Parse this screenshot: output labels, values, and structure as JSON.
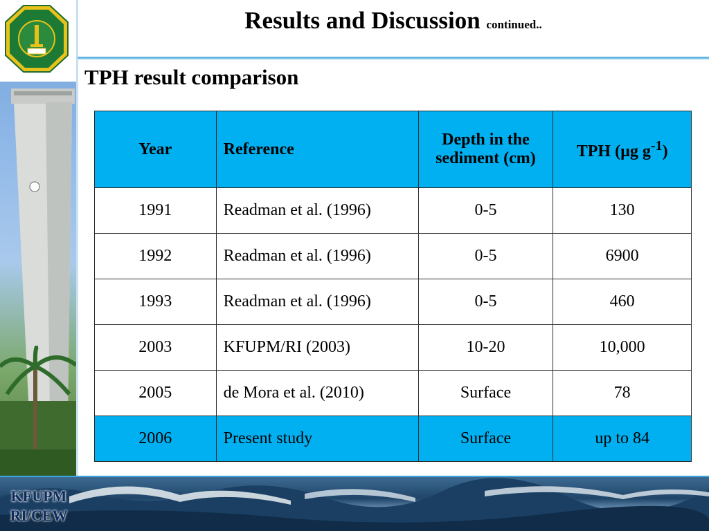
{
  "header": {
    "title": "Results and Discussion",
    "title_suffix": "continued..",
    "subtitle": "TPH result comparison"
  },
  "table": {
    "headers": {
      "year": "Year",
      "reference": "Reference",
      "depth": "Depth in the sediment (cm)",
      "tph_prefix": "TPH (µg g",
      "tph_sup": "-1",
      "tph_suffix": ")"
    },
    "rows": [
      {
        "year": "1991",
        "reference": "Readman et al. (1996)",
        "depth": "0-5",
        "tph": "130"
      },
      {
        "year": "1992",
        "reference": "Readman et al. (1996)",
        "depth": "0-5",
        "tph": "6900"
      },
      {
        "year": "1993",
        "reference": "Readman et al. (1996)",
        "depth": "0-5",
        "tph": "460"
      },
      {
        "year": "2003",
        "reference": "KFUPM/RI (2003)",
        "depth": "10-20",
        "tph": "10,000"
      },
      {
        "year": "2005",
        "reference": "de Mora et al. (2010)",
        "depth": "Surface",
        "tph": "78"
      },
      {
        "year": "2006",
        "reference": "Present study",
        "depth": "Surface",
        "tph": "up to 84"
      }
    ]
  },
  "branding": {
    "line1": "KFUPM",
    "line2": "RI/CEW"
  },
  "colors": {
    "header_fill": "#00b0f0",
    "rule": "#3da6d9"
  }
}
